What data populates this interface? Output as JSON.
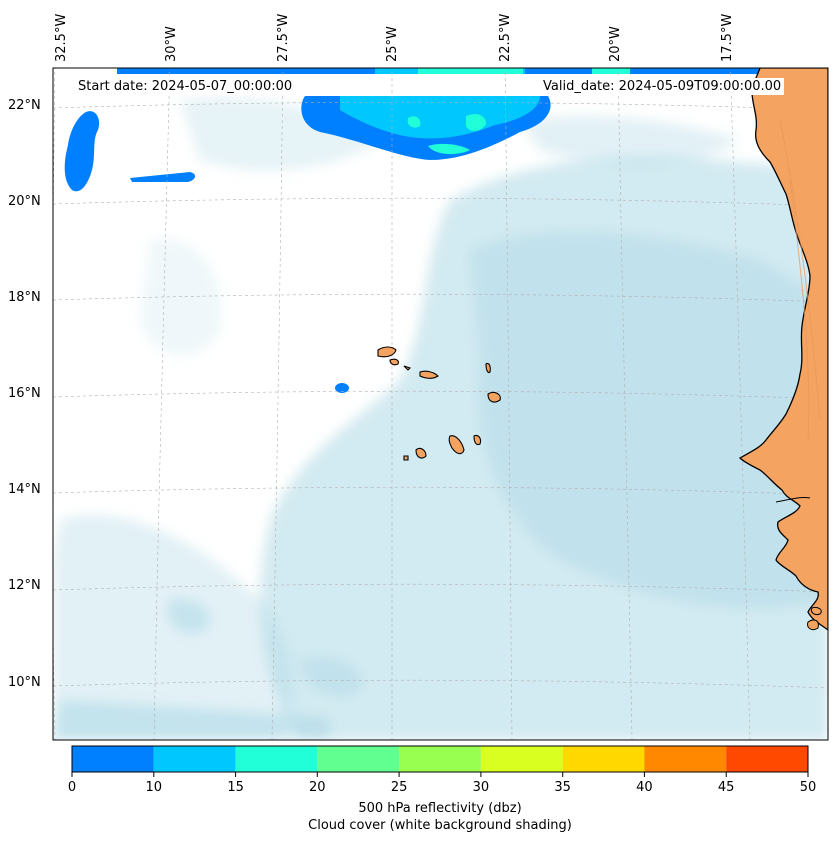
{
  "map": {
    "start_date": "Start date: 2024-05-07_00:00:00",
    "valid_date": "Valid_date: 2024-05-09T09:00:00.00",
    "lon_labels": [
      "32.5°W",
      "30°W",
      "27.5°W",
      "25°W",
      "22.5°W",
      "20°W",
      "17.5°W"
    ],
    "lat_labels": [
      "22°N",
      "20°N",
      "18°N",
      "16°N",
      "14°N",
      "12°N",
      "10°N"
    ],
    "colors": {
      "cloud": "#add8e6",
      "land": "#f4a460",
      "ocean": "#ffffff"
    }
  },
  "colorbar": {
    "ticks": [
      "0",
      "10",
      "15",
      "20",
      "25",
      "30",
      "35",
      "40",
      "45",
      "50"
    ],
    "colors": [
      "#0080ff",
      "#00c8ff",
      "#20ffd8",
      "#60ff90",
      "#98ff50",
      "#d8ff20",
      "#ffd800",
      "#ff8800",
      "#ff4800"
    ],
    "label": "500 hPa reflectivity (dbz)",
    "sublabel": "Cloud cover (white background shading)"
  }
}
